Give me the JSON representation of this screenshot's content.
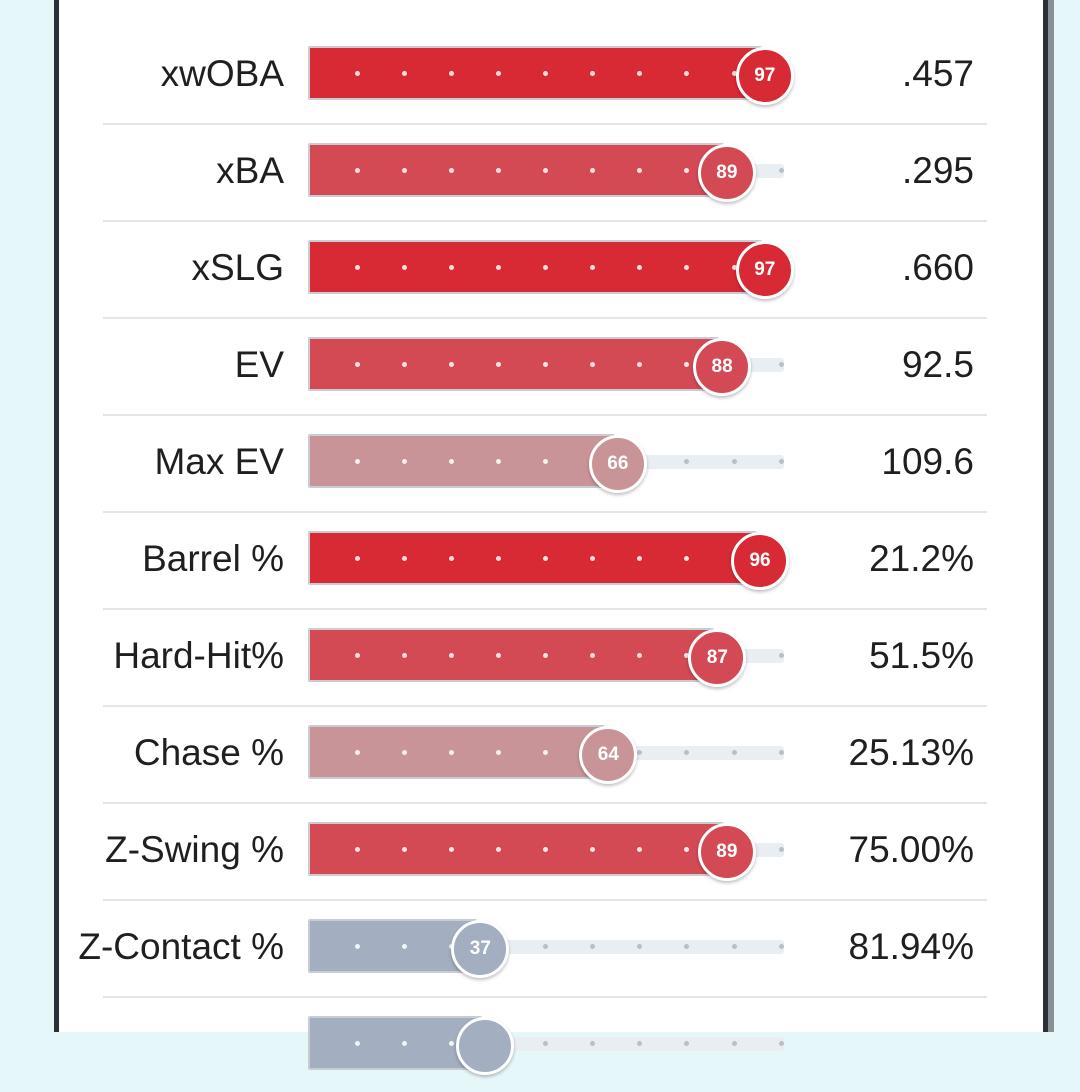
{
  "colors": {
    "elite": "#d72a35",
    "high": "#d34a55",
    "mid": "#c99498",
    "low": "#a3afc0",
    "track": "#e9eef2"
  },
  "metrics": [
    {
      "label": "xwOBA",
      "percentile": 97,
      "value": ".457",
      "tier": "elite"
    },
    {
      "label": "xBA",
      "percentile": 89,
      "value": ".295",
      "tier": "high"
    },
    {
      "label": "xSLG",
      "percentile": 97,
      "value": ".660",
      "tier": "elite"
    },
    {
      "label": "EV",
      "percentile": 88,
      "value": "92.5",
      "tier": "high"
    },
    {
      "label": "Max EV",
      "percentile": 66,
      "value": "109.6",
      "tier": "mid"
    },
    {
      "label": "Barrel %",
      "percentile": 96,
      "value": "21.2%",
      "tier": "elite"
    },
    {
      "label": "Hard-Hit%",
      "percentile": 87,
      "value": "51.5%",
      "tier": "high"
    },
    {
      "label": "Chase %",
      "percentile": 64,
      "value": "25.13%",
      "tier": "mid"
    },
    {
      "label": "Z-Swing %",
      "percentile": 89,
      "value": "75.00%",
      "tier": "high"
    },
    {
      "label": "Z-Contact %",
      "percentile": 37,
      "value": "81.94%",
      "tier": "low"
    },
    {
      "label": "",
      "percentile": 38,
      "value": "",
      "tier": "low"
    }
  ]
}
